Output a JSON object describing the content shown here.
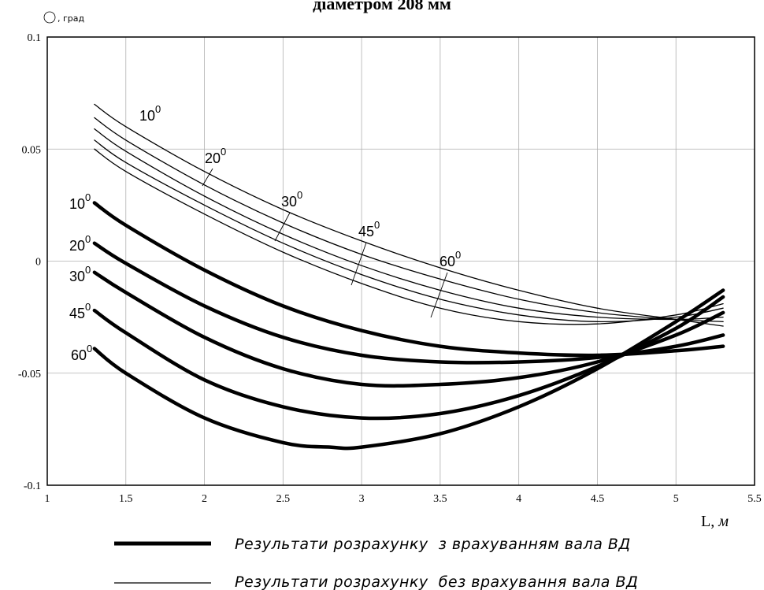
{
  "title": "діаметром 208 мм",
  "y_axis_label": "Θ, град",
  "x_axis_label": "L, м",
  "legend": [
    {
      "label": "Результати розрахунку  з врахуванням вала ВД",
      "style": "thick"
    },
    {
      "label": "Результати розрахунку  без врахування вала ВД",
      "style": "thin"
    }
  ],
  "chart_data": {
    "type": "line",
    "xlim": [
      1,
      5.5
    ],
    "ylim": [
      -0.1,
      0.1
    ],
    "xticks": [
      "1",
      "1.5",
      "2",
      "2.5",
      "3",
      "3.5",
      "4",
      "4.5",
      "5",
      "5.5"
    ],
    "yticks": [
      "0.1",
      "0.05",
      "0",
      "-0.05",
      "-0.1"
    ],
    "grid": true,
    "series": [
      {
        "name": "10°",
        "group": "with",
        "x": [
          1.3,
          1.5,
          2,
          2.5,
          3,
          3.5,
          4,
          4.5,
          5,
          5.3
        ],
        "y": [
          0.026,
          0.016,
          -0.004,
          -0.02,
          -0.031,
          -0.038,
          -0.041,
          -0.042,
          -0.04,
          -0.038
        ]
      },
      {
        "name": "20°",
        "group": "with",
        "x": [
          1.3,
          1.5,
          2,
          2.5,
          3,
          3.5,
          4,
          4.5,
          5,
          5.3
        ],
        "y": [
          0.008,
          -0.001,
          -0.02,
          -0.034,
          -0.042,
          -0.045,
          -0.045,
          -0.043,
          -0.038,
          -0.033
        ]
      },
      {
        "name": "30°",
        "group": "with",
        "x": [
          1.3,
          1.5,
          2,
          2.5,
          3,
          3.5,
          4,
          4.5,
          5,
          5.3
        ],
        "y": [
          -0.005,
          -0.014,
          -0.034,
          -0.048,
          -0.055,
          -0.055,
          -0.052,
          -0.045,
          -0.033,
          -0.023
        ]
      },
      {
        "name": "45°",
        "group": "with",
        "x": [
          1.3,
          1.5,
          2,
          2.5,
          3,
          3.5,
          4,
          4.5,
          5,
          5.3
        ],
        "y": [
          -0.022,
          -0.032,
          -0.053,
          -0.065,
          -0.07,
          -0.068,
          -0.06,
          -0.047,
          -0.03,
          -0.016
        ]
      },
      {
        "name": "60°",
        "group": "with",
        "x": [
          1.3,
          1.5,
          2,
          2.5,
          2.8,
          3,
          3.5,
          4,
          4.5,
          5,
          5.3
        ],
        "y": [
          -0.039,
          -0.05,
          -0.07,
          -0.081,
          -0.083,
          -0.083,
          -0.077,
          -0.065,
          -0.048,
          -0.027,
          -0.013
        ]
      },
      {
        "name": "10°",
        "group": "without",
        "x": [
          1.3,
          1.5,
          2,
          2.5,
          3,
          3.5,
          4,
          4.5,
          5,
          5.3
        ],
        "y": [
          0.07,
          0.06,
          0.04,
          0.023,
          0.009,
          -0.003,
          -0.013,
          -0.021,
          -0.026,
          -0.029
        ]
      },
      {
        "name": "20°",
        "group": "without",
        "x": [
          1.3,
          1.5,
          2,
          2.5,
          3,
          3.5,
          4,
          4.5,
          5,
          5.3
        ],
        "y": [
          0.064,
          0.054,
          0.034,
          0.017,
          0.003,
          -0.008,
          -0.017,
          -0.023,
          -0.026,
          -0.027
        ]
      },
      {
        "name": "30°",
        "group": "without",
        "x": [
          1.3,
          1.5,
          2,
          2.5,
          3,
          3.5,
          4,
          4.5,
          5,
          5.3
        ],
        "y": [
          0.059,
          0.049,
          0.029,
          0.012,
          -0.002,
          -0.013,
          -0.021,
          -0.025,
          -0.026,
          -0.025
        ]
      },
      {
        "name": "45°",
        "group": "without",
        "x": [
          1.3,
          1.5,
          2,
          2.5,
          3,
          3.5,
          4,
          4.5,
          5,
          5.3
        ],
        "y": [
          0.054,
          0.044,
          0.025,
          0.008,
          -0.006,
          -0.017,
          -0.024,
          -0.027,
          -0.025,
          -0.021
        ]
      },
      {
        "name": "60°",
        "group": "without",
        "x": [
          1.3,
          1.5,
          2,
          2.5,
          3,
          3.5,
          4,
          4.5,
          5,
          5.3
        ],
        "y": [
          0.05,
          0.04,
          0.021,
          0.004,
          -0.01,
          -0.021,
          -0.027,
          -0.028,
          -0.024,
          -0.019
        ]
      }
    ],
    "annotations": {
      "thick": [
        {
          "base": "10",
          "sup": "0"
        },
        {
          "base": "20",
          "sup": "0"
        },
        {
          "base": "30",
          "sup": "0"
        },
        {
          "base": "45",
          "sup": "0"
        },
        {
          "base": "60",
          "sup": "0"
        }
      ],
      "thin": [
        {
          "base": "10",
          "sup": "0",
          "leader": false
        },
        {
          "base": "20",
          "sup": "0",
          "leader": true
        },
        {
          "base": "30",
          "sup": "0",
          "leader": true
        },
        {
          "base": "45",
          "sup": "0",
          "leader": true
        },
        {
          "base": "60",
          "sup": "0",
          "leader": true
        }
      ]
    }
  }
}
